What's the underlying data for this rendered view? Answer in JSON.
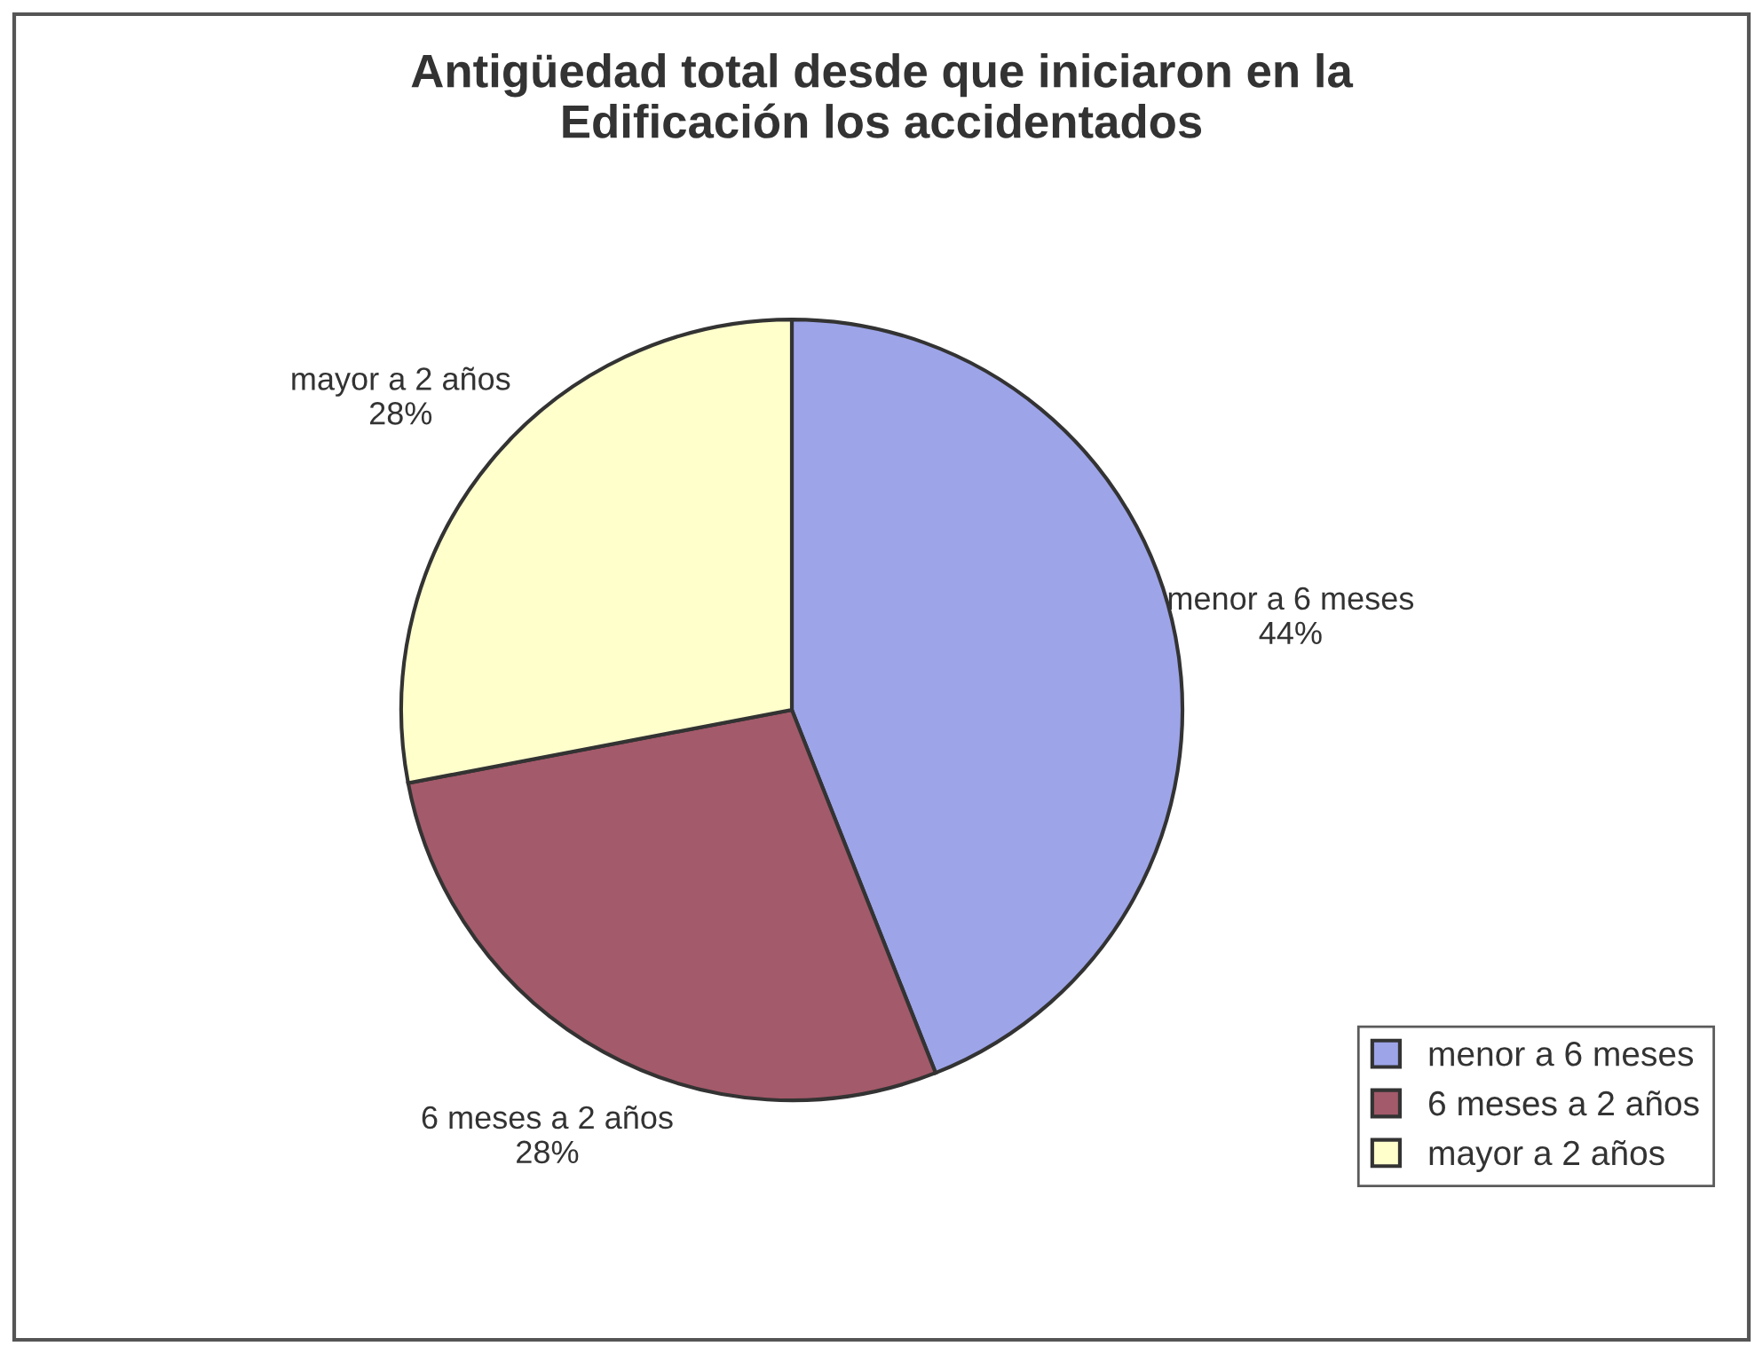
{
  "chart_data": {
    "type": "pie",
    "title": "Antigüedad total desde que iniciaron en la\nEdificación los accidentados",
    "categories": [
      "menor a 6 meses",
      "6 meses a 2 años",
      "mayor a 2 años"
    ],
    "values": [
      44,
      28,
      28
    ],
    "value_labels": [
      "44%",
      "28%",
      "28%"
    ],
    "colors": [
      "#9da4e8",
      "#a35a6a",
      "#ffffcc"
    ],
    "legend": "bottom right"
  }
}
